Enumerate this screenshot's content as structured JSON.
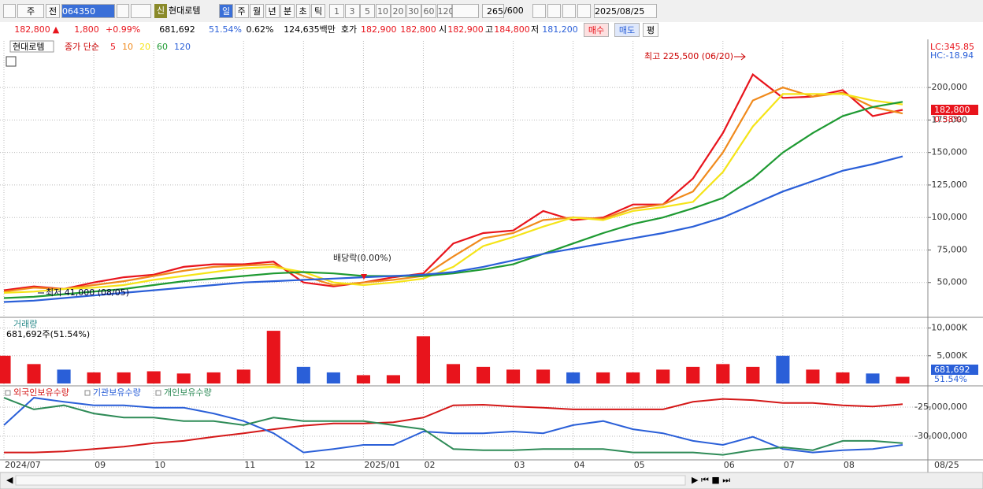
{
  "toolbar": {
    "period": "주",
    "prev": "전",
    "code": "064350",
    "credit": "신",
    "name": "현대로템",
    "intervals": [
      "일",
      "주",
      "월",
      "년",
      "분",
      "초",
      "틱"
    ],
    "minutes": [
      "1",
      "3",
      "5",
      "10",
      "20",
      "30",
      "60",
      "120"
    ],
    "count": "265",
    "max_count": "/600",
    "date": "2025/08/25"
  },
  "quote": {
    "price": "182,800",
    "arrow": "▲",
    "change": "1,800",
    "change_pct": "+0.99%",
    "volume": "681,692",
    "volume_ratio": "51.54%",
    "turnover": "0.62%",
    "amount": "124,635백만",
    "bid_ask_label": "호가",
    "ask": "182,900",
    "bid": "182,800",
    "open_label": "시",
    "open": "182,900",
    "high_label": "고",
    "high": "184,800",
    "low_label": "저",
    "low": "181,200",
    "buy": "매수",
    "sell": "매도",
    "eval": "평"
  },
  "chart_data": [
    {
      "type": "line",
      "symbol": "현대로템",
      "legend_prefix": "종가 단순",
      "annotations": {
        "high": "최고 225,500 (06/20)",
        "low": "최저 41,000 (08/05)",
        "dividend": "배당락(0.00%)",
        "lc": "LC:345.85",
        "hc": "HC:-18.94",
        "last_price": "182,800",
        "last_change": "0.38%"
      },
      "ylim": [
        25000,
        234000
      ],
      "yticks": [
        {
          "value": 50000,
          "label": "50,000"
        },
        {
          "value": 75000,
          "label": "75,000"
        },
        {
          "value": 100000,
          "label": "100,000"
        },
        {
          "value": 125000,
          "label": "125,000"
        },
        {
          "value": 150000,
          "label": "150,000"
        },
        {
          "value": 175000,
          "label": "175,000"
        },
        {
          "value": 200000,
          "label": "200,000"
        }
      ],
      "series": [
        {
          "name": "5",
          "color": "#e8141c",
          "values": [
            44000,
            47000,
            45000,
            50000,
            54000,
            56000,
            62000,
            64000,
            64000,
            66000,
            50000,
            47000,
            50000,
            54000,
            57000,
            80000,
            88000,
            90000,
            105000,
            98000,
            100000,
            110000,
            110000,
            130000,
            165000,
            210000,
            192000,
            193000,
            198000,
            178000,
            182800
          ]
        },
        {
          "name": "10",
          "color": "#f08a1c",
          "values": [
            43000,
            46000,
            45000,
            48000,
            51000,
            55000,
            59000,
            62000,
            63000,
            64000,
            55000,
            48000,
            50000,
            52000,
            55000,
            70000,
            84000,
            88000,
            98000,
            100000,
            99000,
            107000,
            110000,
            120000,
            150000,
            190000,
            200000,
            193000,
            196000,
            185000,
            180000
          ]
        },
        {
          "name": "20",
          "color": "#f5e418",
          "values": [
            42000,
            43000,
            45000,
            46000,
            48000,
            52000,
            55000,
            58000,
            61000,
            62000,
            58000,
            50000,
            48000,
            50000,
            53000,
            62000,
            78000,
            85000,
            93000,
            100000,
            98000,
            105000,
            108000,
            112000,
            135000,
            170000,
            195000,
            195000,
            195000,
            190000,
            187000
          ]
        },
        {
          "name": "60",
          "color": "#1e9a32",
          "values": [
            38000,
            39000,
            41000,
            43000,
            45000,
            48000,
            51000,
            53000,
            55000,
            57000,
            58000,
            57000,
            55000,
            55000,
            55000,
            57000,
            60000,
            64000,
            72000,
            80000,
            88000,
            95000,
            100000,
            107000,
            115000,
            130000,
            150000,
            165000,
            178000,
            185000,
            189000
          ]
        },
        {
          "name": "120",
          "color": "#2a5fd8",
          "values": [
            35000,
            36000,
            38000,
            40000,
            42000,
            44000,
            46000,
            48000,
            50000,
            51000,
            52000,
            53000,
            54000,
            55000,
            56000,
            58000,
            62000,
            67000,
            72000,
            76000,
            80000,
            84000,
            88000,
            93000,
            100000,
            110000,
            120000,
            128000,
            136000,
            141000,
            147000
          ]
        }
      ]
    },
    {
      "type": "bar",
      "title": "거래량",
      "info": "681,692주(51.54%)",
      "last_volume": "681,692",
      "last_ratio": "51.54%",
      "ylim": [
        0,
        11500
      ],
      "yticks": [
        {
          "value": 5000,
          "label": "5,000K"
        },
        {
          "value": 10000,
          "label": "10,000K"
        }
      ],
      "values": [
        5000,
        3500,
        2500,
        2000,
        2000,
        2200,
        1800,
        2000,
        2500,
        9500,
        3000,
        2000,
        1500,
        1500,
        8500,
        3500,
        3000,
        2500,
        2500,
        2000,
        2000,
        2000,
        2500,
        3000,
        3500,
        3000,
        5000,
        2500,
        2000,
        1800,
        1200
      ],
      "up_color": "#e8141c",
      "down_color": "#2a5fd8"
    },
    {
      "type": "line",
      "categories": [
        "2024/07",
        null,
        null,
        "09",
        null,
        "10",
        null,
        null,
        "11",
        null,
        "12",
        null,
        "2025/01",
        null,
        "02",
        null,
        null,
        "03",
        null,
        "04",
        null,
        "05",
        null,
        null,
        "06",
        null,
        "07",
        null,
        "08",
        null,
        null
      ],
      "x_end_label": "08/25",
      "ylim": [
        -34200000,
        -22300000
      ],
      "yticks": [
        {
          "value": -30000000,
          "label": "-30,000,000"
        },
        {
          "value": -25000000,
          "label": "-25,000,000"
        }
      ],
      "series": [
        {
          "name": "외국인보유수량",
          "color": "#d41818",
          "values": [
            -32800000,
            -32800000,
            -32600000,
            -32200000,
            -31800000,
            -31200000,
            -30800000,
            -30100000,
            -29500000,
            -28800000,
            -28200000,
            -27800000,
            -27800000,
            -27600000,
            -26800000,
            -24700000,
            -24600000,
            -24900000,
            -25100000,
            -25400000,
            -25400000,
            -25400000,
            -25400000,
            -24100000,
            -23600000,
            -23800000,
            -24300000,
            -24300000,
            -24700000,
            -24900000,
            -24500000
          ]
        },
        {
          "name": "기관보유수량",
          "color": "#2a5fd8",
          "values": [
            -28100000,
            -23400000,
            -24100000,
            -24700000,
            -24700000,
            -25100000,
            -25100000,
            -26100000,
            -27400000,
            -29500000,
            -32800000,
            -32200000,
            -31500000,
            -31500000,
            -29200000,
            -29500000,
            -29500000,
            -29200000,
            -29500000,
            -28100000,
            -27400000,
            -28800000,
            -29500000,
            -30800000,
            -31500000,
            -30100000,
            -32200000,
            -32800000,
            -32400000,
            -32200000,
            -31500000
          ]
        },
        {
          "name": "개인보유수량",
          "color": "#2e8b57",
          "values": [
            -23400000,
            -25400000,
            -24700000,
            -26100000,
            -26800000,
            -26800000,
            -27400000,
            -27400000,
            -28100000,
            -26800000,
            -27400000,
            -27400000,
            -27400000,
            -28100000,
            -28800000,
            -32200000,
            -32400000,
            -32400000,
            -32200000,
            -32200000,
            -32200000,
            -32800000,
            -32800000,
            -32800000,
            -33200000,
            -32400000,
            -31900000,
            -32400000,
            -30800000,
            -30800000,
            -31200000
          ]
        }
      ]
    }
  ]
}
